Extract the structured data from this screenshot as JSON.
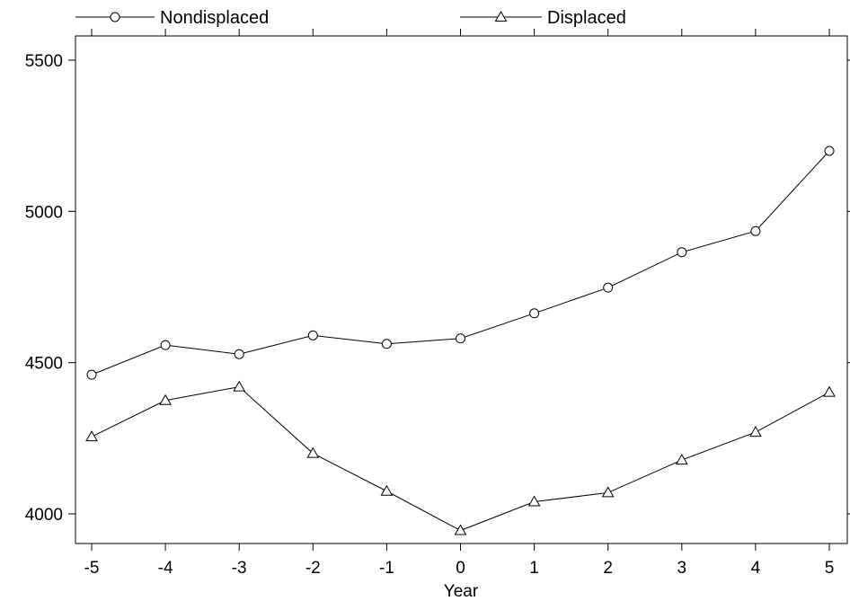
{
  "chart_data": {
    "type": "line",
    "xlabel": "Year",
    "ylabel": "",
    "xlim": [
      -5,
      5
    ],
    "ylim": [
      3900,
      5600
    ],
    "x_ticks": [
      -5,
      -4,
      -3,
      -2,
      -1,
      0,
      1,
      2,
      3,
      4,
      5
    ],
    "y_ticks": [
      4000,
      4500,
      5000,
      5500
    ],
    "grid": false,
    "legend_position": "top",
    "x": [
      -5,
      -4,
      -3,
      -2,
      -1,
      0,
      1,
      2,
      3,
      4,
      5
    ],
    "series": [
      {
        "name": "Nondisplaced",
        "marker": "circle",
        "color": "#000000",
        "values": [
          4460,
          4558,
          4528,
          4590,
          4562,
          4580,
          4663,
          4748,
          4865,
          4935,
          5200
        ]
      },
      {
        "name": "Displaced",
        "marker": "triangle",
        "color": "#000000",
        "values": [
          4255,
          4375,
          4420,
          4200,
          4075,
          3945,
          4040,
          4070,
          4178,
          4270,
          4402
        ]
      }
    ]
  }
}
